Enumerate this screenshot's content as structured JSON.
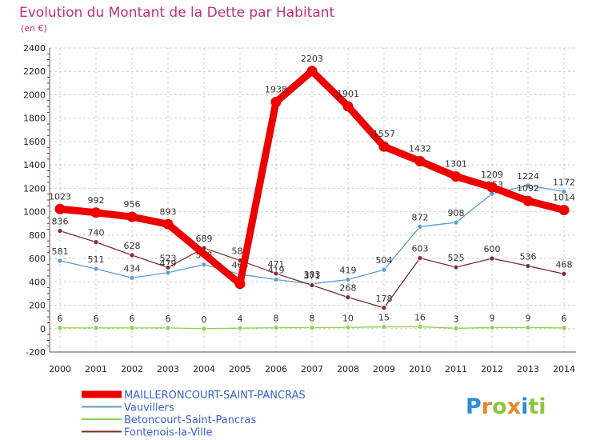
{
  "header": {
    "title": "Evolution du Montant de la Dette par Habitant",
    "subtitle": "(en €)"
  },
  "logo": {
    "letters": [
      "P",
      "r",
      "o",
      "x",
      "i",
      "t",
      "i"
    ],
    "colors": [
      "#2b8fd6",
      "#e8872a",
      "#8cc63f",
      "#e8872a",
      "#2b8fd6",
      "#8cc63f",
      "#8cc63f"
    ]
  },
  "chart_data": {
    "type": "line",
    "title": "Evolution du Montant de la Dette par Habitant",
    "subtitle": "(en €)",
    "xlabel": "",
    "ylabel": "",
    "x": [
      "2000",
      "2001",
      "2002",
      "2003",
      "2004",
      "2005",
      "2006",
      "2007",
      "2008",
      "2009",
      "2010",
      "2011",
      "2012",
      "2013",
      "2014"
    ],
    "ylim": [
      -200,
      2400
    ],
    "yticks": [
      -200,
      0,
      200,
      400,
      600,
      800,
      1000,
      1200,
      1400,
      1600,
      1800,
      2000,
      2200,
      2400
    ],
    "grid": {
      "horizontal": true,
      "vertical": true,
      "style": "dashed"
    },
    "legend": "bottom-left",
    "series": [
      {
        "name": "MAILLERONCOURT-SAINT-PANCRAS",
        "color": "#ee0000",
        "values": [
          1023,
          992,
          956,
          893,
          null,
          383,
          1938,
          2203,
          1901,
          1557,
          1432,
          1301,
          1209,
          1092,
          1014
        ],
        "labels": [
          "1023",
          "992",
          "956",
          "893",
          "",
          "",
          "1938",
          "2203",
          "1901",
          "1557",
          "1432",
          "1301",
          "1209",
          "1092",
          "1014"
        ],
        "interpolated": [
          4
        ]
      },
      {
        "name": "Vauvillers",
        "color": "#5b9bd5",
        "values": [
          581,
          511,
          434,
          479,
          548,
          465,
          419,
          383,
          419,
          504,
          872,
          908,
          1153,
          1224,
          1172
        ],
        "labels": [
          "581",
          "511",
          "434",
          "479",
          "548",
          "465",
          "419",
          "383",
          "419",
          "504",
          "872",
          "908",
          "1153",
          "1224",
          "1172"
        ]
      },
      {
        "name": "Betoncourt-Saint-Pancras",
        "color": "#92d050",
        "values": [
          6,
          6,
          6,
          6,
          0,
          4,
          8,
          8,
          10,
          15,
          16,
          3,
          9,
          9,
          6
        ],
        "labels": [
          "6",
          "6",
          "6",
          "6",
          "0",
          "4",
          "8",
          "8",
          "10",
          "15",
          "16",
          "3",
          "9",
          "9",
          "6"
        ]
      },
      {
        "name": "Fontenois-la-Ville",
        "color": "#7b2d2d",
        "values": [
          836,
          740,
          628,
          523,
          689,
          583,
          471,
          371,
          268,
          178,
          603,
          525,
          600,
          536,
          468
        ],
        "labels": [
          "836",
          "740",
          "628",
          "523",
          "689",
          "583",
          "471",
          "371",
          "268",
          "178",
          "603",
          "525",
          "600",
          "536",
          "468"
        ]
      }
    ]
  }
}
